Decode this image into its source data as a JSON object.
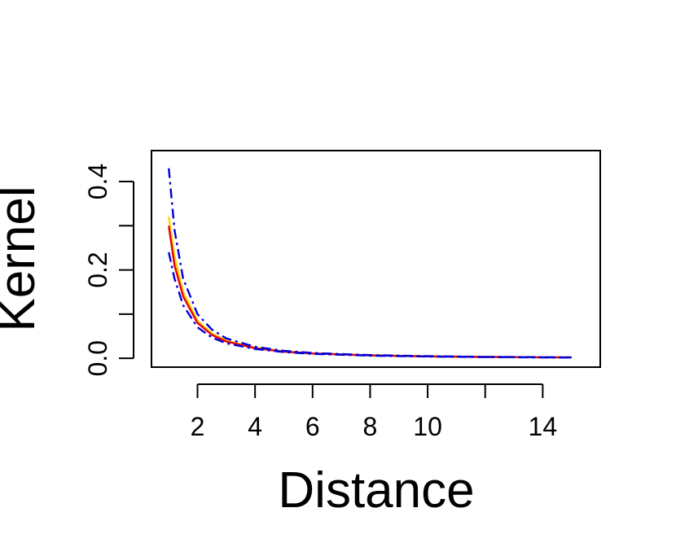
{
  "chart_data": {
    "type": "line",
    "xlabel": "Distance",
    "ylabel": "Kernel",
    "xlim": [
      0.4,
      16.0
    ],
    "ylim": [
      -0.02,
      0.47
    ],
    "x_ticks": [
      2,
      4,
      6,
      8,
      10,
      12,
      14
    ],
    "x_tick_labels": [
      "2",
      "4",
      "6",
      "8",
      "10",
      "",
      "14"
    ],
    "y_ticks": [
      0.0,
      0.1,
      0.2,
      0.3,
      0.4
    ],
    "y_tick_labels": [
      "0.0",
      "",
      "0.2",
      "",
      "0.4"
    ],
    "grid": false,
    "legend": "none",
    "series": [
      {
        "color": "#ffd700",
        "style": "solid",
        "x": [
          1.0,
          1.2,
          1.5,
          2.0,
          2.5,
          3.0,
          4.0,
          5.0,
          6.0,
          8.0,
          10.0,
          12.0,
          14.0,
          15.0
        ],
        "values": [
          0.32,
          0.23,
          0.15,
          0.085,
          0.056,
          0.04,
          0.024,
          0.016,
          0.011,
          0.007,
          0.0045,
          0.003,
          0.0022,
          0.002
        ]
      },
      {
        "color": "#e8000b",
        "style": "solid",
        "x": [
          1.0,
          1.2,
          1.5,
          2.0,
          2.5,
          3.0,
          4.0,
          5.0,
          6.0,
          8.0,
          10.0,
          12.0,
          14.0,
          15.0
        ],
        "values": [
          0.3,
          0.21,
          0.14,
          0.08,
          0.053,
          0.038,
          0.023,
          0.015,
          0.011,
          0.0065,
          0.0043,
          0.003,
          0.0022,
          0.002
        ]
      },
      {
        "color": "#0000dd",
        "style": "dashdot",
        "x": [
          1.0,
          1.2,
          1.5,
          2.0,
          2.5,
          3.0,
          4.0,
          5.0,
          6.0,
          8.0,
          10.0,
          12.0,
          14.0,
          15.0
        ],
        "values": [
          0.43,
          0.29,
          0.18,
          0.1,
          0.065,
          0.045,
          0.026,
          0.017,
          0.012,
          0.0072,
          0.0048,
          0.0033,
          0.0024,
          0.0021
        ]
      },
      {
        "color": "#0000dd",
        "style": "dashdot",
        "x": [
          1.0,
          1.2,
          1.5,
          2.0,
          2.5,
          3.0,
          4.0,
          5.0,
          6.0,
          8.0,
          10.0,
          12.0,
          14.0,
          15.0
        ],
        "values": [
          0.24,
          0.18,
          0.12,
          0.07,
          0.047,
          0.034,
          0.021,
          0.014,
          0.01,
          0.006,
          0.004,
          0.0028,
          0.002,
          0.0018
        ]
      }
    ]
  }
}
